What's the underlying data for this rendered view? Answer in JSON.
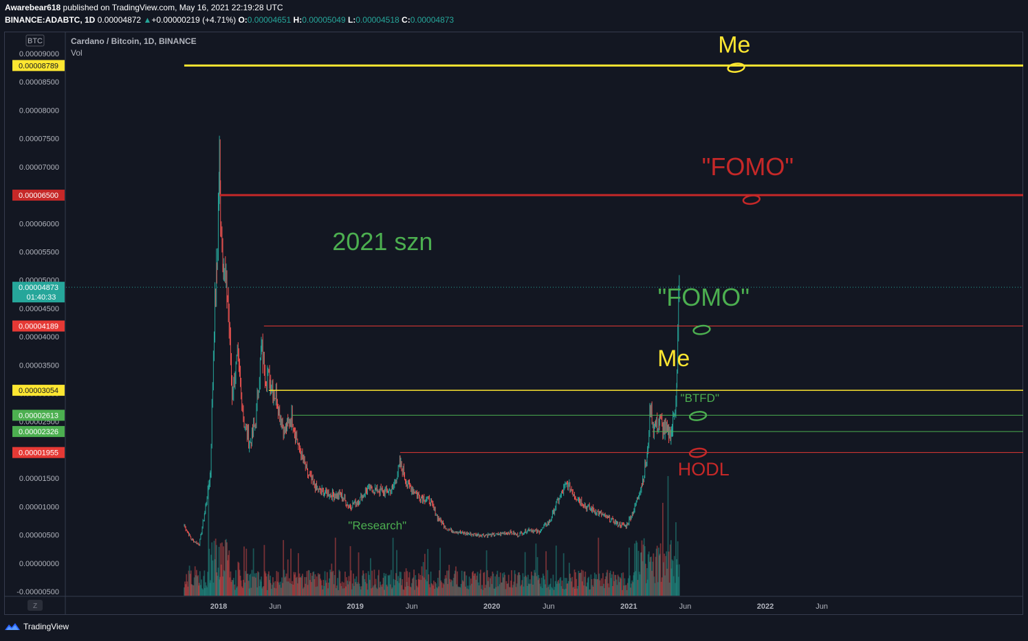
{
  "header": {
    "publisher": "Awarebear618",
    "published_text": "published on TradingView.com, May 16, 2021 22:19:28 UTC",
    "symbol": "BINANCE:ADABTC, 1D",
    "last": "0.00004872",
    "change": "+0.00000219 (+4.71%)",
    "o_label": "O:",
    "o": "0.00004651",
    "h_label": "H:",
    "h": "0.00005049",
    "l_label": "L:",
    "l": "0.00004518",
    "c_label": "C:",
    "c": "0.00004873"
  },
  "legend": {
    "title": "Cardano / Bitcoin, 1D, BINANCE",
    "vol": "Vol"
  },
  "scale_badge": "BTC",
  "z_button": "Z",
  "footer": {
    "brand": "TradingView"
  },
  "colors": {
    "up": "#26a69a",
    "down": "#ef5350",
    "yellow": "#fde631",
    "red": "#c62828",
    "green": "#4caf50",
    "background": "#131722"
  },
  "chart_data": {
    "type": "candlestick",
    "title": "Cardano / Bitcoin, 1D, BINANCE",
    "y_ticks": [
      "0.00009000",
      "0.00008500",
      "0.00008000",
      "0.00007500",
      "0.00007000",
      "0.00006500",
      "0.00006000",
      "0.00005500",
      "0.00005000",
      "0.00004500",
      "0.00004000",
      "0.00003500",
      "0.00003000",
      "0.00002500",
      "0.00002000",
      "0.00001500",
      "0.00001000",
      "0.00000500",
      "0.00000000",
      "-0.00000500"
    ],
    "x_ticks": [
      {
        "label": "2018",
        "date": "2018-01-01",
        "bold": true
      },
      {
        "label": "Jun",
        "date": "2018-06-01",
        "bold": false
      },
      {
        "label": "2019",
        "date": "2019-01-01",
        "bold": true
      },
      {
        "label": "Jun",
        "date": "2019-06-01",
        "bold": false
      },
      {
        "label": "2020",
        "date": "2020-01-01",
        "bold": true
      },
      {
        "label": "Jun",
        "date": "2020-06-01",
        "bold": false
      },
      {
        "label": "2021",
        "date": "2021-01-01",
        "bold": true
      },
      {
        "label": "Jun",
        "date": "2021-06-01",
        "bold": false
      },
      {
        "label": "2022",
        "date": "2022-01-01",
        "bold": true
      },
      {
        "label": "Jun",
        "date": "2022-06-01",
        "bold": false
      }
    ],
    "price_path": [
      [
        "2017-10-01",
        6.7e-06
      ],
      [
        "2017-10-20",
        4.2e-06
      ],
      [
        "2017-11-10",
        3.3e-06
      ],
      [
        "2017-11-25",
        9e-06
      ],
      [
        "2017-12-10",
        1.6e-05
      ],
      [
        "2017-12-20",
        4.3e-05
      ],
      [
        "2017-12-27",
        5.2e-05
      ],
      [
        "2018-01-03",
        7e-05
      ],
      [
        "2018-01-06",
        6.2e-05
      ],
      [
        "2018-01-15",
        5.2e-05
      ],
      [
        "2018-01-25",
        4.7e-05
      ],
      [
        "2018-02-06",
        3e-05
      ],
      [
        "2018-02-20",
        3.6e-05
      ],
      [
        "2018-03-10",
        2.5e-05
      ],
      [
        "2018-03-25",
        2.1e-05
      ],
      [
        "2018-04-10",
        2.5e-05
      ],
      [
        "2018-04-25",
        3.8e-05
      ],
      [
        "2018-05-05",
        3.4e-05
      ],
      [
        "2018-05-20",
        3.2e-05
      ],
      [
        "2018-06-05",
        2.9e-05
      ],
      [
        "2018-06-25",
        2.3e-05
      ],
      [
        "2018-07-15",
        2.6e-05
      ],
      [
        "2018-08-05",
        2e-05
      ],
      [
        "2018-08-25",
        1.6e-05
      ],
      [
        "2018-09-20",
        1.3e-05
      ],
      [
        "2018-10-10",
        1.25e-05
      ],
      [
        "2018-11-05",
        1.2e-05
      ],
      [
        "2018-11-25",
        1.2e-05
      ],
      [
        "2018-12-15",
        1e-05
      ],
      [
        "2019-01-10",
        1.1e-05
      ],
      [
        "2019-02-01",
        1.3e-05
      ],
      [
        "2019-02-25",
        1.3e-05
      ],
      [
        "2019-03-20",
        1.25e-05
      ],
      [
        "2019-04-10",
        1.3e-05
      ],
      [
        "2019-05-01",
        1.75e-05
      ],
      [
        "2019-05-20",
        1.4e-05
      ],
      [
        "2019-06-20",
        1.2e-05
      ],
      [
        "2019-07-20",
        1.1e-05
      ],
      [
        "2019-08-10",
        8e-06
      ],
      [
        "2019-09-05",
        6e-06
      ],
      [
        "2019-10-15",
        5.3e-06
      ],
      [
        "2019-11-20",
        5e-06
      ],
      [
        "2020-01-10",
        5e-06
      ],
      [
        "2020-02-15",
        5.5e-06
      ],
      [
        "2020-03-10",
        5e-06
      ],
      [
        "2020-04-10",
        6e-06
      ],
      [
        "2020-05-05",
        5.5e-06
      ],
      [
        "2020-06-05",
        7.5e-06
      ],
      [
        "2020-06-25",
        1.1e-05
      ],
      [
        "2020-07-20",
        1.4e-05
      ],
      [
        "2020-08-10",
        1.2e-05
      ],
      [
        "2020-09-10",
        1e-05
      ],
      [
        "2020-10-10",
        9e-06
      ],
      [
        "2020-11-05",
        8e-06
      ],
      [
        "2020-12-01",
        7e-06
      ],
      [
        "2020-12-25",
        6.5e-06
      ],
      [
        "2021-01-15",
        9.5e-06
      ],
      [
        "2021-02-05",
        1.4e-05
      ],
      [
        "2021-02-20",
        1.9e-05
      ],
      [
        "2021-02-28",
        2.8e-05
      ],
      [
        "2021-03-08",
        2.4e-05
      ],
      [
        "2021-03-25",
        2.5e-05
      ],
      [
        "2021-04-10",
        2.3e-05
      ],
      [
        "2021-04-25",
        2.3e-05
      ],
      [
        "2021-05-05",
        2.8e-05
      ],
      [
        "2021-05-10",
        3.3e-05
      ],
      [
        "2021-05-14",
        4.6e-05
      ],
      [
        "2021-05-16",
        4.87e-05
      ]
    ],
    "horizontal_levels": [
      {
        "value": "0.00008789",
        "y": 8.789e-05,
        "from": "2017-10-01",
        "color": "#fde631",
        "text_color": "#131722",
        "width": 3
      },
      {
        "value": "0.00006500",
        "y": 6.5e-05,
        "from": "2018-01-03",
        "color": "#c62828",
        "text_color": "#ffffff",
        "width": 3
      },
      {
        "value": "0.00004189",
        "y": 4.189e-05,
        "from": "2018-05-02",
        "color": "#e53935",
        "text_color": "#ffffff",
        "width": 1
      },
      {
        "value": "0.00003054",
        "y": 3.054e-05,
        "from": "2018-05-15",
        "color": "#fde631",
        "text_color": "#131722",
        "width": 1.5
      },
      {
        "value": "0.00002613",
        "y": 2.613e-05,
        "from": "2018-07-15",
        "color": "#4caf50",
        "text_color": "#ffffff",
        "width": 1
      },
      {
        "value": "0.00002326",
        "y": 2.326e-05,
        "from": "2021-03-05",
        "color": "#4caf50",
        "text_color": "#ffffff",
        "width": 1
      },
      {
        "value": "0.00001955",
        "y": 1.955e-05,
        "from": "2019-05-01",
        "color": "#e53935",
        "text_color": "#ffffff",
        "width": 1
      }
    ],
    "current_price": {
      "value": "0.00004873",
      "countdown": "01:40:33",
      "y": 4.873e-05,
      "color": "#26a69a"
    },
    "annotations": [
      {
        "text": "Me",
        "color": "#fde631",
        "size": 34,
        "date": "2021-10-10",
        "y": 9.02e-05
      },
      {
        "text": "\"FOMO\"",
        "color": "#c62828",
        "size": 36,
        "date": "2021-11-15",
        "y": 6.85e-05
      },
      {
        "text": "2021 szn",
        "color": "#4caf50",
        "size": 36,
        "date": "2019-03-15",
        "y": 5.53e-05
      },
      {
        "text": "\"FOMO\"",
        "color": "#4caf50",
        "size": 36,
        "date": "2021-07-20",
        "y": 4.55e-05
      },
      {
        "text": "Me",
        "color": "#fde631",
        "size": 34,
        "date": "2021-05-01",
        "y": 3.48e-05
      },
      {
        "text": "\"BTFD\"",
        "color": "#4caf50",
        "size": 17,
        "date": "2021-07-10",
        "y": 2.85e-05
      },
      {
        "text": "HODL",
        "color": "#c62828",
        "size": 27,
        "date": "2021-07-20",
        "y": 1.55e-05
      },
      {
        "text": "\"Research\"",
        "color": "#4caf50",
        "size": 17,
        "date": "2019-03-01",
        "y": 6e-06
      }
    ],
    "circles": [
      {
        "date": "2021-10-15",
        "y": 8.75e-05,
        "color": "#fde631"
      },
      {
        "date": "2021-11-25",
        "y": 6.42e-05,
        "color": "#c62828"
      },
      {
        "date": "2021-07-15",
        "y": 4.12e-05,
        "color": "#4caf50"
      },
      {
        "date": "2021-07-05",
        "y": 2.6e-05,
        "color": "#4caf50"
      },
      {
        "date": "2021-07-05",
        "y": 1.95e-05,
        "color": "#c62828"
      }
    ]
  }
}
